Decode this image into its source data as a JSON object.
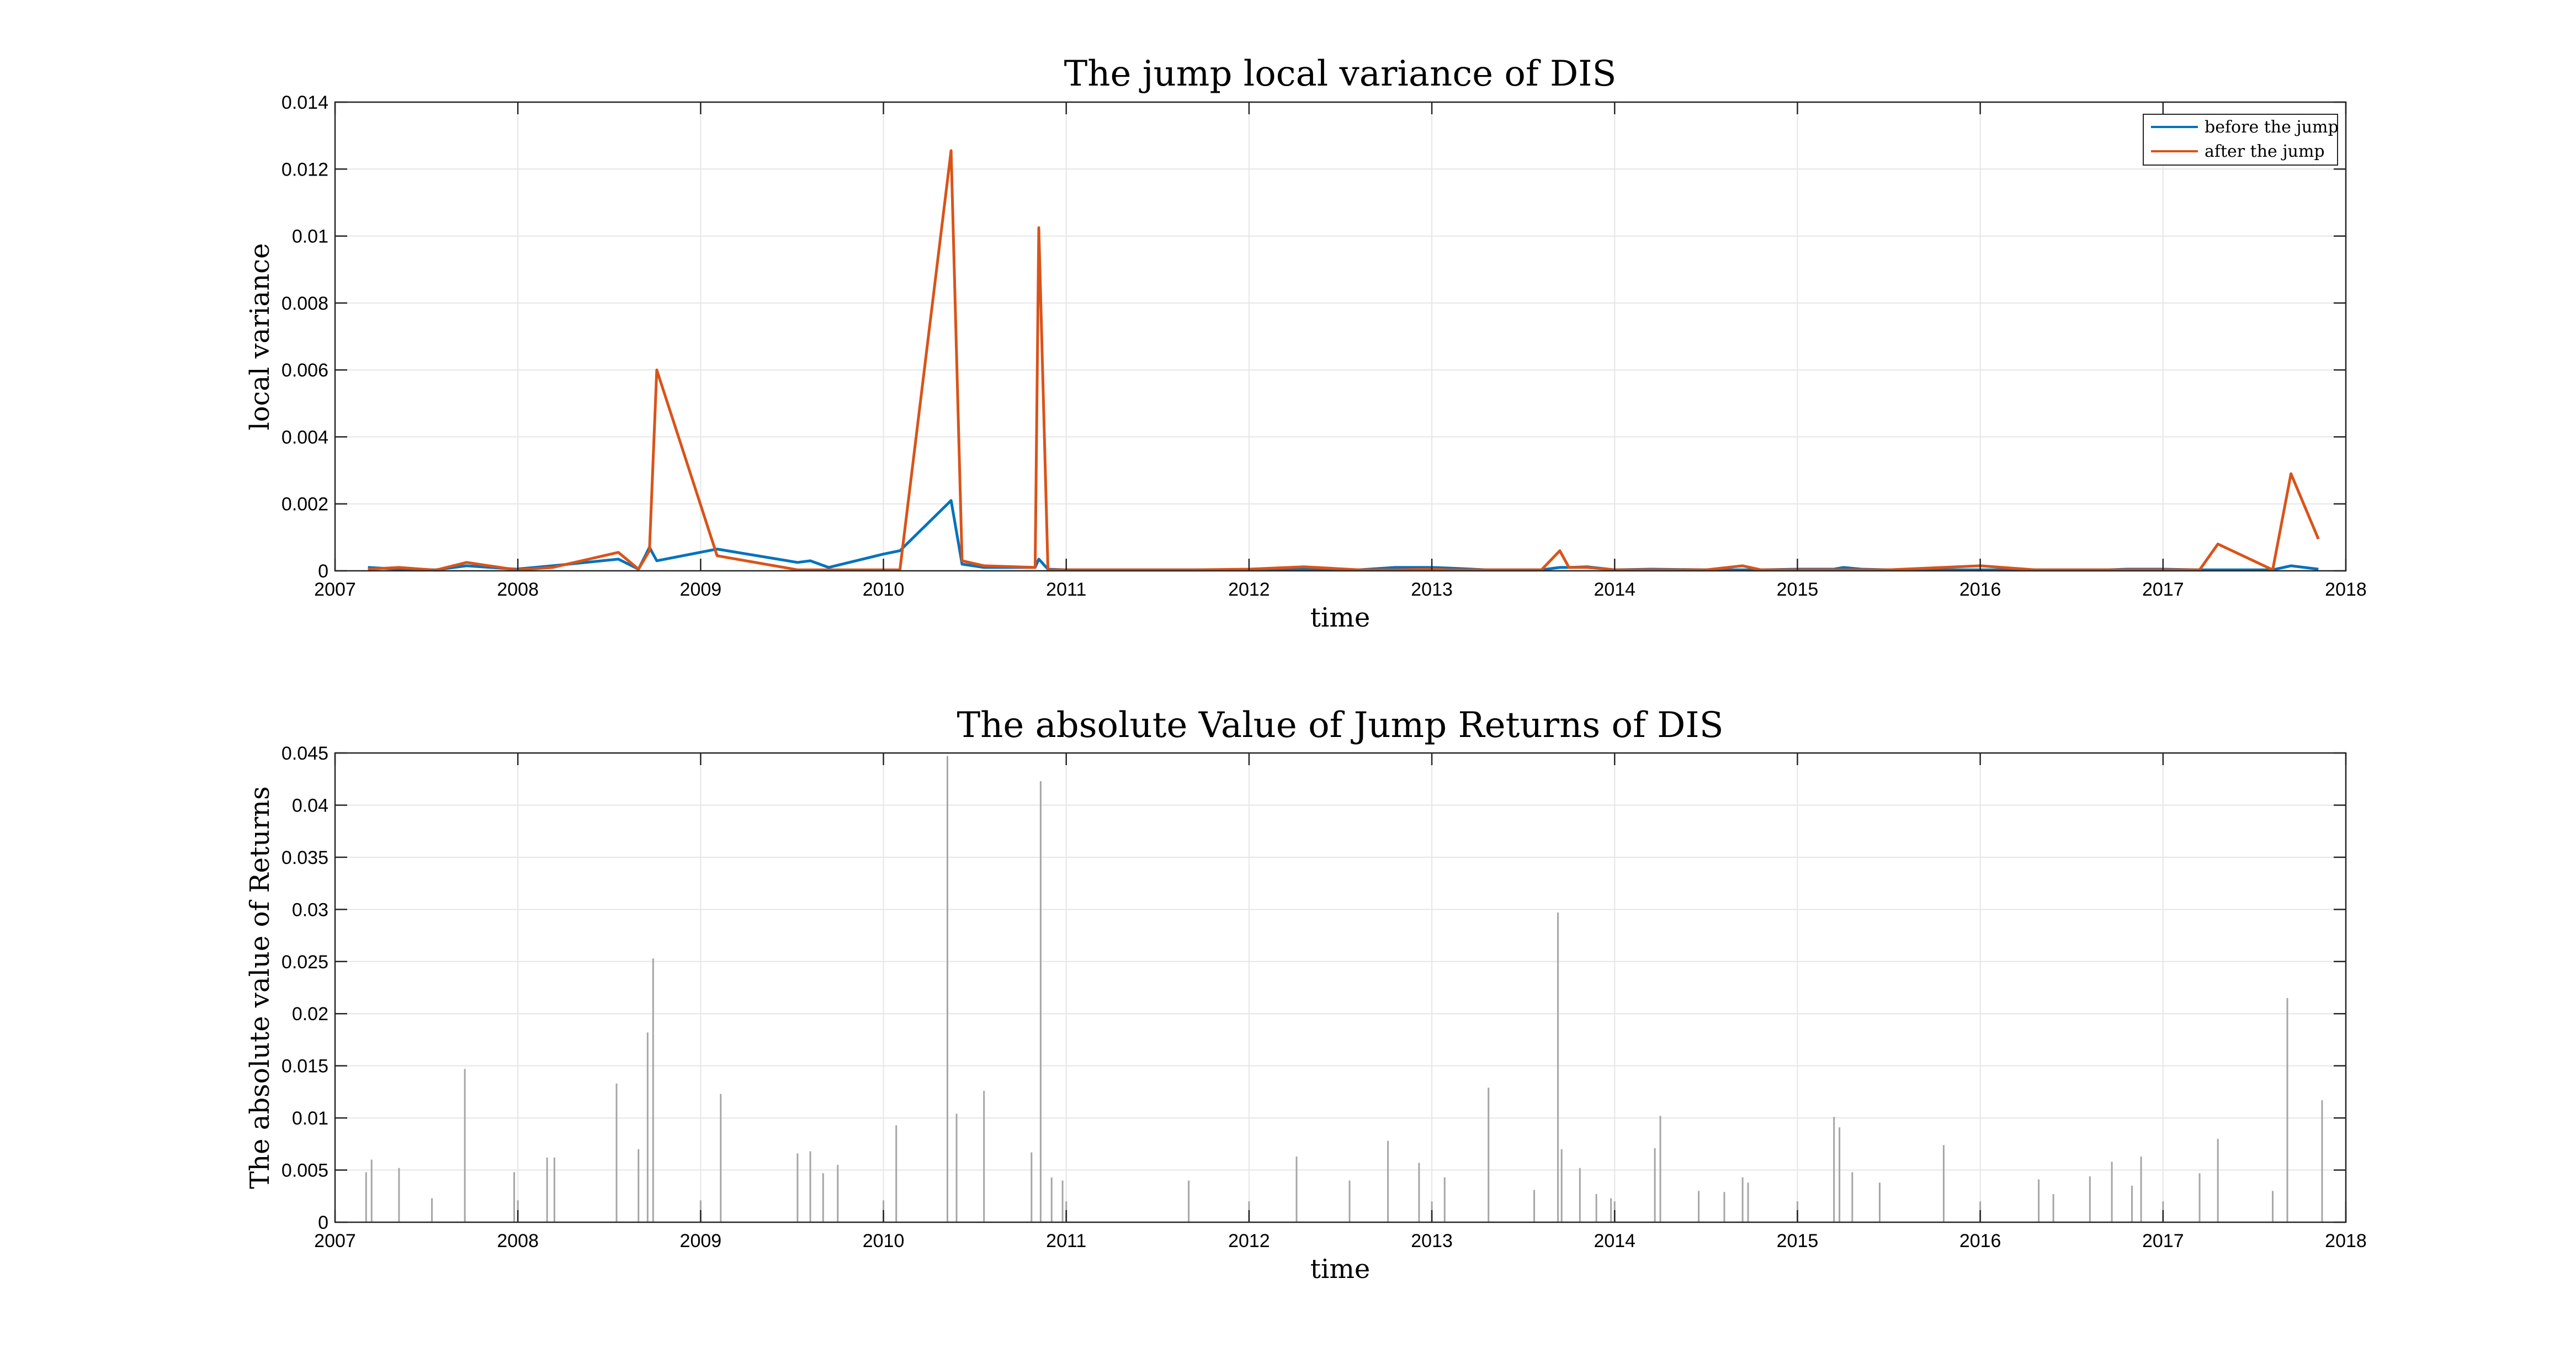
{
  "chart_data": [
    {
      "type": "line",
      "title": "The jump local variance of DIS",
      "xlabel": "time",
      "ylabel": "local variance",
      "xlim": [
        2007,
        2018
      ],
      "ylim": [
        0,
        0.014
      ],
      "xticks": [
        "2007",
        "2008",
        "2009",
        "2010",
        "2011",
        "2012",
        "2013",
        "2014",
        "2015",
        "2016",
        "2017",
        "2018"
      ],
      "yticks": [
        "0",
        "0.002",
        "0.004",
        "0.006",
        "0.008",
        "0.01",
        "0.012",
        "0.014"
      ],
      "grid": true,
      "legend_position": "top-right",
      "series": [
        {
          "name": "before the jump",
          "color": "#0072BD",
          "x": [
            2007.18,
            2007.35,
            2007.55,
            2007.72,
            2007.99,
            2008.19,
            2008.55,
            2008.66,
            2008.72,
            2008.76,
            2009.09,
            2009.53,
            2009.6,
            2009.7,
            2010.0,
            2010.09,
            2010.37,
            2010.43,
            2010.55,
            2010.83,
            2010.85,
            2010.9,
            2011.0,
            2011.7,
            2012.0,
            2012.3,
            2012.6,
            2012.8,
            2013.0,
            2013.1,
            2013.3,
            2013.6,
            2013.7,
            2013.75,
            2013.85,
            2014.0,
            2014.2,
            2014.5,
            2014.7,
            2014.8,
            2015.0,
            2015.2,
            2015.25,
            2015.35,
            2015.5,
            2016.0,
            2016.3,
            2016.7,
            2016.8,
            2017.0,
            2017.2,
            2017.3,
            2017.6,
            2017.7,
            2017.85
          ],
          "y": [
            0.0001,
            5e-05,
            3e-05,
            0.00015,
            5e-05,
            0.00015,
            0.00035,
            5e-05,
            0.0007,
            0.0003,
            0.00065,
            0.00025,
            0.0003,
            0.0001,
            0.0005,
            0.0006,
            0.0021,
            0.0002,
            0.0001,
            0.0001,
            0.00035,
            5e-05,
            3e-05,
            3e-05,
            3e-05,
            5e-05,
            3e-05,
            0.0001,
            0.0001,
            8e-05,
            3e-05,
            3e-05,
            0.0001,
            0.0001,
            0.00012,
            3e-05,
            5e-05,
            3e-05,
            3e-05,
            3e-05,
            5e-05,
            5e-05,
            0.0001,
            5e-05,
            3e-05,
            3e-05,
            3e-05,
            3e-05,
            5e-05,
            5e-05,
            3e-05,
            3e-05,
            3e-05,
            0.00015,
            5e-05
          ]
        },
        {
          "name": "after the jump",
          "color": "#D95319",
          "x": [
            2007.18,
            2007.35,
            2007.55,
            2007.72,
            2007.99,
            2008.19,
            2008.55,
            2008.66,
            2008.72,
            2008.76,
            2009.09,
            2009.53,
            2009.6,
            2009.7,
            2010.0,
            2010.09,
            2010.37,
            2010.43,
            2010.55,
            2010.83,
            2010.85,
            2010.9,
            2011.0,
            2011.7,
            2012.0,
            2012.3,
            2012.6,
            2012.8,
            2013.0,
            2013.1,
            2013.3,
            2013.6,
            2013.7,
            2013.75,
            2013.85,
            2014.0,
            2014.2,
            2014.5,
            2014.7,
            2014.8,
            2015.0,
            2015.2,
            2015.25,
            2015.35,
            2015.5,
            2016.0,
            2016.3,
            2016.7,
            2016.8,
            2017.0,
            2017.2,
            2017.3,
            2017.6,
            2017.7,
            2017.85
          ],
          "y": [
            5e-05,
            0.0001,
            2e-05,
            0.00025,
            3e-05,
            0.0001,
            0.00055,
            5e-05,
            0.0006,
            0.006,
            0.00045,
            3e-05,
            3e-05,
            3e-05,
            3e-05,
            3e-05,
            0.01255,
            0.0003,
            0.00015,
            0.0001,
            0.01025,
            3e-05,
            3e-05,
            3e-05,
            5e-05,
            0.00012,
            3e-05,
            3e-05,
            5e-05,
            3e-05,
            3e-05,
            3e-05,
            0.0006,
            0.0001,
            0.0001,
            3e-05,
            3e-05,
            3e-05,
            0.00015,
            3e-05,
            3e-05,
            3e-05,
            3e-05,
            3e-05,
            3e-05,
            0.00015,
            3e-05,
            3e-05,
            3e-05,
            3e-05,
            3e-05,
            0.0008,
            3e-05,
            0.0029,
            0.00095
          ]
        }
      ]
    },
    {
      "type": "bar",
      "title": "The absolute Value of Jump Returns of DIS",
      "xlabel": "time",
      "ylabel": "The absolute value of Returns",
      "xlim": [
        2007,
        2018
      ],
      "ylim": [
        0,
        0.045
      ],
      "xticks": [
        "2007",
        "2008",
        "2009",
        "2010",
        "2011",
        "2012",
        "2013",
        "2014",
        "2015",
        "2016",
        "2017",
        "2018"
      ],
      "yticks": [
        "0",
        "0.005",
        "0.01",
        "0.015",
        "0.02",
        "0.025",
        "0.03",
        "0.035",
        "0.04",
        "0.045"
      ],
      "grid": true,
      "bar_color": "#a6a6a6",
      "x": [
        2007.17,
        2007.2,
        2007.35,
        2007.53,
        2007.71,
        2007.98,
        2008.0,
        2008.16,
        2008.2,
        2008.54,
        2008.66,
        2008.71,
        2008.74,
        2009.0,
        2009.11,
        2009.53,
        2009.6,
        2009.67,
        2009.75,
        2010.0,
        2010.07,
        2010.35,
        2010.4,
        2010.55,
        2010.81,
        2010.86,
        2010.92,
        2010.98,
        2011.0,
        2011.67,
        2012.0,
        2012.26,
        2012.55,
        2012.76,
        2012.93,
        2013.0,
        2013.07,
        2013.31,
        2013.56,
        2013.69,
        2013.71,
        2013.81,
        2013.9,
        2013.98,
        2014.0,
        2014.22,
        2014.25,
        2014.46,
        2014.6,
        2014.7,
        2014.73,
        2015.0,
        2015.2,
        2015.23,
        2015.3,
        2015.45,
        2015.8,
        2016.0,
        2016.32,
        2016.4,
        2016.6,
        2016.72,
        2016.83,
        2016.88,
        2017.0,
        2017.2,
        2017.3,
        2017.6,
        2017.68,
        2017.87,
        2018.0
      ],
      "values": [
        0.0048,
        0.006,
        0.0052,
        0.0023,
        0.0147,
        0.0048,
        0.0021,
        0.0062,
        0.0062,
        0.0133,
        0.007,
        0.0182,
        0.0253,
        0.0021,
        0.0123,
        0.0066,
        0.0068,
        0.0047,
        0.0055,
        0.0021,
        0.0093,
        0.0447,
        0.0104,
        0.0126,
        0.0067,
        0.0423,
        0.0043,
        0.004,
        0.002,
        0.004,
        0.002,
        0.0063,
        0.004,
        0.0078,
        0.0057,
        0.002,
        0.0043,
        0.0129,
        0.0031,
        0.0297,
        0.007,
        0.0052,
        0.0027,
        0.0023,
        0.002,
        0.0071,
        0.0102,
        0.003,
        0.0029,
        0.0043,
        0.0038,
        0.002,
        0.0101,
        0.0091,
        0.0048,
        0.0038,
        0.0074,
        0.002,
        0.0041,
        0.0027,
        0.0044,
        0.0058,
        0.0035,
        0.0063,
        0.002,
        0.0047,
        0.008,
        0.003,
        0.0215,
        0.0117,
        0.002
      ]
    }
  ]
}
